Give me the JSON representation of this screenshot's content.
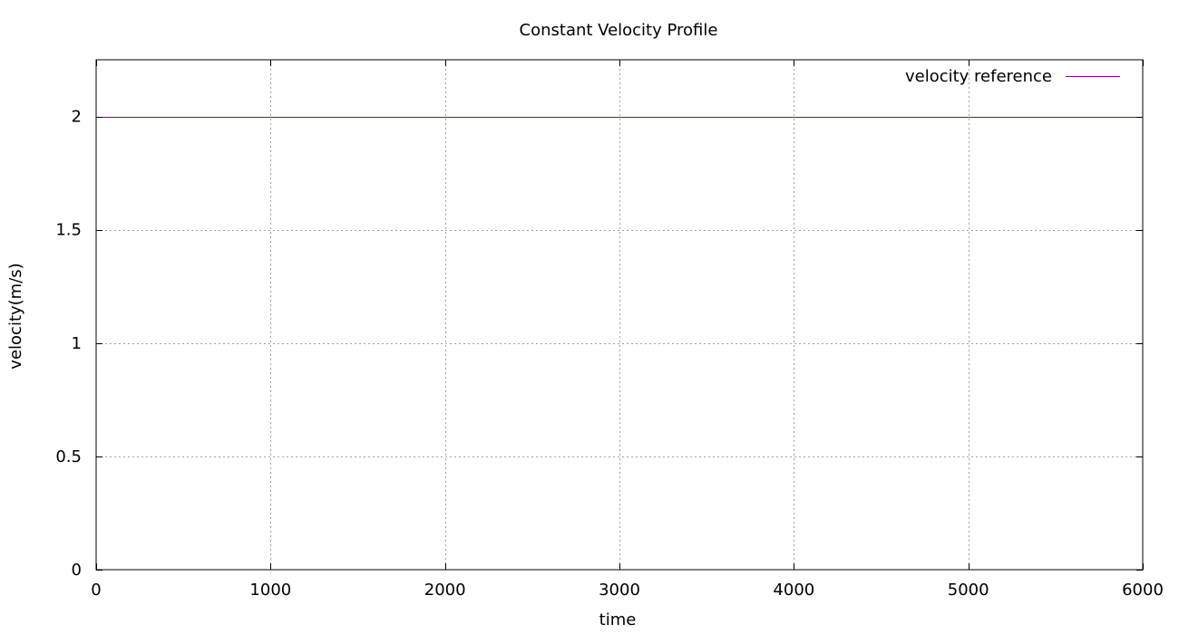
{
  "chart_data": {
    "type": "line",
    "title": "Constant Velocity Profile",
    "xlabel": "time",
    "ylabel": "velocity(m/s)",
    "xlim": [
      0,
      6000
    ],
    "ylim": [
      0,
      2.25
    ],
    "x_ticks": [
      0,
      1000,
      2000,
      3000,
      4000,
      5000,
      6000
    ],
    "x_tick_labels": [
      "0",
      "1000",
      "2000",
      "3000",
      "4000",
      "5000",
      "6000"
    ],
    "y_ticks": [
      0,
      0.5,
      1,
      1.5,
      2
    ],
    "y_tick_labels": [
      "0",
      "0.5",
      "1",
      "1.5",
      "2"
    ],
    "grid": true,
    "legend_position": "top-right",
    "series": [
      {
        "name": "velocity reference",
        "color": "#8b008b",
        "x": [
          0,
          6000
        ],
        "y": [
          2,
          2
        ]
      }
    ]
  }
}
